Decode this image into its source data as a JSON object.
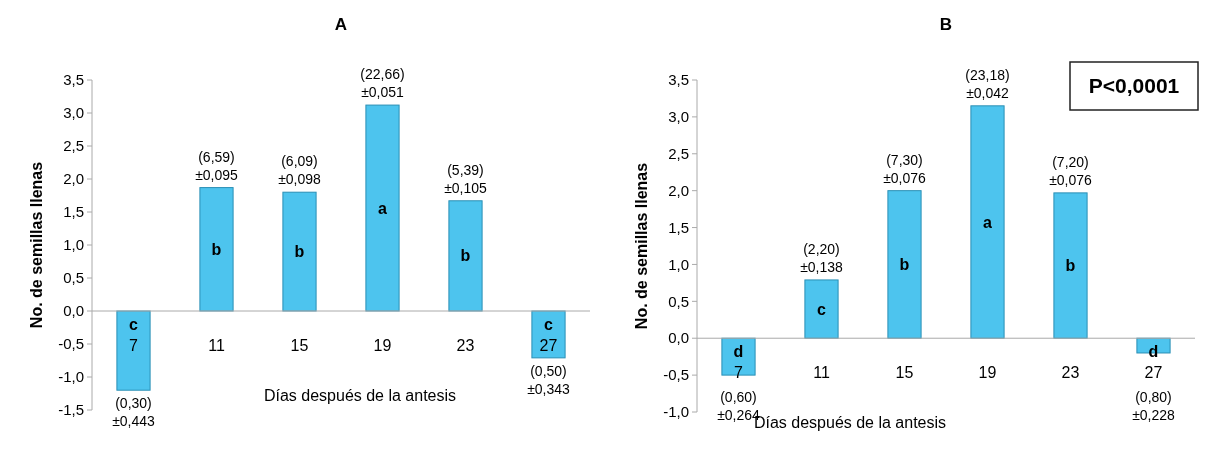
{
  "chart_data": [
    {
      "type": "bar",
      "title": "A",
      "xlabel": "Días después de la antesis",
      "ylabel": "No. de semillas llenas",
      "categories": [
        "7",
        "11",
        "15",
        "19",
        "23",
        "27"
      ],
      "values": [
        -1.2,
        1.87,
        1.8,
        3.12,
        1.67,
        -0.71
      ],
      "color": "#4dc4ee",
      "ylim": [
        -1.5,
        3.5
      ],
      "yticks": [
        {
          "value": -1.5,
          "label": "-1,5"
        },
        {
          "value": -1,
          "label": "-1,0"
        },
        {
          "value": -0.5,
          "label": "-0,5"
        },
        {
          "value": 0,
          "label": "0,0"
        },
        {
          "value": 0.5,
          "label": "0,5"
        },
        {
          "value": 1,
          "label": "1,0"
        },
        {
          "value": 1.5,
          "label": "1,5"
        },
        {
          "value": 2,
          "label": "2,0"
        },
        {
          "value": 2.5,
          "label": "2,5"
        },
        {
          "value": 3,
          "label": "3,0"
        },
        {
          "value": 3.5,
          "label": "3,5"
        }
      ],
      "grid": false,
      "annotations": [
        {
          "text": "(0,30)\n±0,443",
          "x": "7",
          "y": -1.2
        },
        {
          "text": "(6,59)\n±0,095",
          "x": "11",
          "y": 1.87
        },
        {
          "text": "(6,09)\n±0,098",
          "x": "15",
          "y": 1.8
        },
        {
          "text": "(22,66)\n±0,051",
          "x": "19",
          "y": 3.12
        },
        {
          "text": "(5,39)\n±0,105",
          "x": "23",
          "y": 1.67
        },
        {
          "text": "(0,50)\n±0,343",
          "x": "27",
          "y": -0.71
        },
        "c",
        "b",
        "b",
        "a",
        "b",
        "c"
      ]
    },
    {
      "type": "bar",
      "title": "B",
      "xlabel": "Días después de la antesis",
      "ylabel": "No. de semillas llenas",
      "categories": [
        "7",
        "11",
        "15",
        "19",
        "23",
        "27"
      ],
      "values": [
        -0.5,
        0.79,
        2.0,
        3.15,
        1.97,
        -0.2
      ],
      "color": "#4dc4ee",
      "ylim": [
        -1,
        3.5
      ],
      "yticks": [
        {
          "value": -1,
          "label": "-1,0"
        },
        {
          "value": -0.5,
          "label": "-0,5"
        },
        {
          "value": 0,
          "label": "0,0"
        },
        {
          "value": 0.5,
          "label": "0,5"
        },
        {
          "value": 1,
          "label": "1,0"
        },
        {
          "value": 1.5,
          "label": "1,5"
        },
        {
          "value": 2,
          "label": "2,0"
        },
        {
          "value": 2.5,
          "label": "2,5"
        },
        {
          "value": 3,
          "label": "3,0"
        },
        {
          "value": 3.5,
          "label": "3,5"
        }
      ],
      "grid": false,
      "annotations": [
        {
          "text": "(0,60)\n±0,264",
          "x": "7",
          "y": -0.5
        },
        {
          "text": "(2,20)\n±0,138",
          "x": "11",
          "y": 0.79
        },
        {
          "text": "(7,30)\n±0,076",
          "x": "15",
          "y": 2.0
        },
        {
          "text": "(23,18)\n±0,042",
          "x": "19",
          "y": 3.15
        },
        {
          "text": "(7,20)\n±0,076",
          "x": "23",
          "y": 1.97
        },
        {
          "text": "(0,80)\n±0,228",
          "x": "27",
          "y": -0.2
        },
        "d",
        "c",
        "b",
        "a",
        "b",
        "d",
        "P<0,0001"
      ]
    }
  ]
}
